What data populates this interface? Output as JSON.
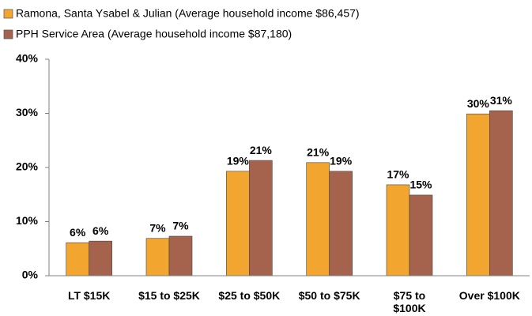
{
  "chart_data": {
    "type": "bar",
    "categories": [
      "LT $15K",
      "$15 to $25K",
      "$25 to $50K",
      "$50 to $75K",
      "$75 to $100K",
      "Over $100K"
    ],
    "series": [
      {
        "name": "Ramona, Santa Ysabel & Julian (Average household income $86,457)",
        "color": "#f2a630",
        "values": [
          6.1,
          6.9,
          19.3,
          20.9,
          16.8,
          29.9
        ],
        "value_labels": [
          "6%",
          "7%",
          "19%",
          "21%",
          "17%",
          "30%"
        ]
      },
      {
        "name": "PPH Service Area (Average household income $87,180)",
        "color": "#a5634e",
        "values": [
          6.4,
          7.3,
          21.3,
          19.3,
          14.9,
          30.5
        ],
        "value_labels": [
          "6%",
          "7%",
          "21%",
          "19%",
          "15%",
          "31%"
        ]
      }
    ],
    "ylim": [
      0,
      40
    ],
    "yticks": [
      {
        "value": 0,
        "label": "0%"
      },
      {
        "value": 10,
        "label": "10%"
      },
      {
        "value": 20,
        "label": "20%"
      },
      {
        "value": 30,
        "label": "30%"
      },
      {
        "value": 40,
        "label": "40%"
      }
    ],
    "legend": "top-left"
  }
}
